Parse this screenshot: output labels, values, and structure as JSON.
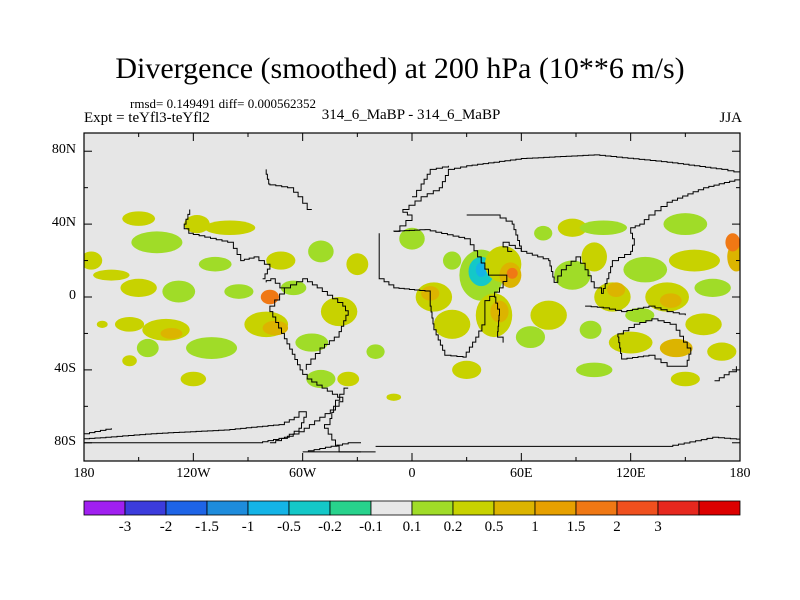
{
  "title": "Divergence (smoothed) at 200 hPa (10**6 m/s)",
  "stats_line": "rmsd= 0.149491 diff= 0.000562352",
  "experiment": "Expt = teYfl3-teYfl2",
  "subtitle": "314_6_MaBP - 314_6_MaBP",
  "season": "JJA",
  "map": {
    "projection": "cylindrical equidistant",
    "lon_range": [
      -180,
      180
    ],
    "lat_range": [
      -90,
      90
    ],
    "background_color": "#e6e6e6",
    "lat_ticks": [
      "80N",
      "40N",
      "0",
      "40S",
      "80S"
    ],
    "lon_ticks": [
      "180",
      "120W",
      "60W",
      "0",
      "60E",
      "120E",
      "180"
    ]
  },
  "colorbar": {
    "colors": [
      "#a020f0",
      "#3c3cdc",
      "#1e64e6",
      "#1e8cdc",
      "#14b4e6",
      "#14c8c8",
      "#28d28c",
      "#e8e8e8",
      "#a0dc28",
      "#c8d200",
      "#dcb400",
      "#e6a000",
      "#f07814",
      "#f0501e",
      "#e6281e",
      "#dc0000"
    ],
    "labels": [
      "-3",
      "-2",
      "-1.5",
      "-1",
      "-0.5",
      "-0.2",
      "-0.1",
      "0.1",
      "0.2",
      "0.5",
      "1",
      "1.5",
      "2",
      "3"
    ]
  },
  "anomaly_blobs": [
    {
      "lon": -176,
      "lat": 20,
      "rx": 6,
      "ry": 5,
      "level": 1
    },
    {
      "lon": -150,
      "lat": 43,
      "rx": 9,
      "ry": 4,
      "level": 1
    },
    {
      "lon": -140,
      "lat": 30,
      "rx": 14,
      "ry": 6,
      "level": 0
    },
    {
      "lon": -118,
      "lat": 40,
      "rx": 7,
      "ry": 5,
      "level": 1
    },
    {
      "lon": -100,
      "lat": 38,
      "rx": 14,
      "ry": 4,
      "level": 1
    },
    {
      "lon": -108,
      "lat": 18,
      "rx": 9,
      "ry": 4,
      "level": 0
    },
    {
      "lon": -165,
      "lat": 12,
      "rx": 10,
      "ry": 3,
      "level": 1
    },
    {
      "lon": -150,
      "lat": 5,
      "rx": 10,
      "ry": 5,
      "level": 1
    },
    {
      "lon": -128,
      "lat": 3,
      "rx": 9,
      "ry": 6,
      "level": 0
    },
    {
      "lon": -95,
      "lat": 3,
      "rx": 8,
      "ry": 4,
      "level": 0
    },
    {
      "lon": -78,
      "lat": 0,
      "rx": 5,
      "ry": 4,
      "level": 3
    },
    {
      "lon": -65,
      "lat": 5,
      "rx": 7,
      "ry": 4,
      "level": 0
    },
    {
      "lon": -72,
      "lat": 20,
      "rx": 8,
      "ry": 5,
      "level": 1
    },
    {
      "lon": -50,
      "lat": 25,
      "rx": 7,
      "ry": 6,
      "level": 0
    },
    {
      "lon": -30,
      "lat": 18,
      "rx": 6,
      "ry": 6,
      "level": 1
    },
    {
      "lon": -40,
      "lat": -8,
      "rx": 10,
      "ry": 8,
      "level": 1
    },
    {
      "lon": -155,
      "lat": -15,
      "rx": 8,
      "ry": 4,
      "level": 1
    },
    {
      "lon": -145,
      "lat": -28,
      "rx": 6,
      "ry": 5,
      "level": 0
    },
    {
      "lon": -135,
      "lat": -18,
      "rx": 13,
      "ry": 6,
      "level": 1
    },
    {
      "lon": -132,
      "lat": -20,
      "rx": 6,
      "ry": 3,
      "level": 2
    },
    {
      "lon": -110,
      "lat": -28,
      "rx": 14,
      "ry": 6,
      "level": 0
    },
    {
      "lon": -120,
      "lat": -45,
      "rx": 7,
      "ry": 4,
      "level": 1
    },
    {
      "lon": -80,
      "lat": -15,
      "rx": 12,
      "ry": 7,
      "level": 1
    },
    {
      "lon": -75,
      "lat": -17,
      "rx": 7,
      "ry": 4,
      "level": 2
    },
    {
      "lon": -55,
      "lat": -25,
      "rx": 9,
      "ry": 5,
      "level": 0
    },
    {
      "lon": -50,
      "lat": -45,
      "rx": 8,
      "ry": 5,
      "level": 0
    },
    {
      "lon": -35,
      "lat": -45,
      "rx": 6,
      "ry": 4,
      "level": 1
    },
    {
      "lon": -155,
      "lat": -35,
      "rx": 4,
      "ry": 3,
      "level": 1
    },
    {
      "lon": -20,
      "lat": -30,
      "rx": 5,
      "ry": 4,
      "level": 0
    },
    {
      "lon": 0,
      "lat": 32,
      "rx": 7,
      "ry": 6,
      "level": 0
    },
    {
      "lon": 12,
      "lat": 0,
      "rx": 10,
      "ry": 8,
      "level": 1
    },
    {
      "lon": 10,
      "lat": 2,
      "rx": 5,
      "ry": 4,
      "level": 2
    },
    {
      "lon": 22,
      "lat": 20,
      "rx": 5,
      "ry": 5,
      "level": 0
    },
    {
      "lon": 38,
      "lat": 12,
      "rx": 12,
      "ry": 14,
      "level": 0
    },
    {
      "lon": 38,
      "lat": 14,
      "rx": 7,
      "ry": 8,
      "level": -1
    },
    {
      "lon": 38,
      "lat": 15,
      "rx": 3,
      "ry": 4,
      "level": -2
    },
    {
      "lon": 50,
      "lat": 18,
      "rx": 10,
      "ry": 10,
      "level": 1
    },
    {
      "lon": 54,
      "lat": 12,
      "rx": 6,
      "ry": 7,
      "level": 2
    },
    {
      "lon": 55,
      "lat": 13,
      "rx": 3,
      "ry": 3,
      "level": 3
    },
    {
      "lon": 22,
      "lat": -15,
      "rx": 10,
      "ry": 8,
      "level": 1
    },
    {
      "lon": 45,
      "lat": -10,
      "rx": 10,
      "ry": 12,
      "level": 1
    },
    {
      "lon": 48,
      "lat": -8,
      "rx": 5,
      "ry": 6,
      "level": 2
    },
    {
      "lon": 30,
      "lat": -40,
      "rx": 8,
      "ry": 5,
      "level": 1
    },
    {
      "lon": 65,
      "lat": -22,
      "rx": 8,
      "ry": 6,
      "level": 0
    },
    {
      "lon": 75,
      "lat": -10,
      "rx": 10,
      "ry": 8,
      "level": 1
    },
    {
      "lon": 88,
      "lat": 12,
      "rx": 10,
      "ry": 8,
      "level": 0
    },
    {
      "lon": 88,
      "lat": 38,
      "rx": 8,
      "ry": 5,
      "level": 1
    },
    {
      "lon": 72,
      "lat": 35,
      "rx": 5,
      "ry": 4,
      "level": 0
    },
    {
      "lon": 105,
      "lat": 38,
      "rx": 13,
      "ry": 4,
      "level": 0
    },
    {
      "lon": 100,
      "lat": 22,
      "rx": 7,
      "ry": 8,
      "level": 1
    },
    {
      "lon": 110,
      "lat": 0,
      "rx": 10,
      "ry": 8,
      "level": 1
    },
    {
      "lon": 112,
      "lat": 4,
      "rx": 5,
      "ry": 4,
      "level": 2
    },
    {
      "lon": 128,
      "lat": 15,
      "rx": 12,
      "ry": 7,
      "level": 0
    },
    {
      "lon": 140,
      "lat": 0,
      "rx": 12,
      "ry": 8,
      "level": 1
    },
    {
      "lon": 142,
      "lat": -2,
      "rx": 6,
      "ry": 4,
      "level": 2
    },
    {
      "lon": 150,
      "lat": 40,
      "rx": 12,
      "ry": 6,
      "level": 0
    },
    {
      "lon": 155,
      "lat": 20,
      "rx": 14,
      "ry": 6,
      "level": 1
    },
    {
      "lon": 165,
      "lat": 5,
      "rx": 10,
      "ry": 5,
      "level": 0
    },
    {
      "lon": 178,
      "lat": 22,
      "rx": 5,
      "ry": 8,
      "level": 2
    },
    {
      "lon": 176,
      "lat": 30,
      "rx": 4,
      "ry": 5,
      "level": 3
    },
    {
      "lon": 120,
      "lat": -25,
      "rx": 12,
      "ry": 6,
      "level": 1
    },
    {
      "lon": 125,
      "lat": -10,
      "rx": 8,
      "ry": 4,
      "level": 0
    },
    {
      "lon": 160,
      "lat": -15,
      "rx": 10,
      "ry": 6,
      "level": 1
    },
    {
      "lon": 145,
      "lat": -28,
      "rx": 9,
      "ry": 5,
      "level": 2
    },
    {
      "lon": 170,
      "lat": -30,
      "rx": 8,
      "ry": 5,
      "level": 1
    },
    {
      "lon": 100,
      "lat": -40,
      "rx": 10,
      "ry": 4,
      "level": 0
    },
    {
      "lon": 150,
      "lat": -45,
      "rx": 8,
      "ry": 4,
      "level": 1
    },
    {
      "lon": -10,
      "lat": -55,
      "rx": 4,
      "ry": 2,
      "level": 1
    },
    {
      "lon": -170,
      "lat": -15,
      "rx": 3,
      "ry": 2,
      "level": 1
    },
    {
      "lon": 98,
      "lat": -18,
      "rx": 6,
      "ry": 5,
      "level": 0
    }
  ],
  "coastlines": [
    [
      [
        -180,
        -80
      ],
      [
        -85,
        -80
      ],
      [
        -70,
        -77
      ],
      [
        -62,
        -72
      ],
      [
        -58,
        -63
      ],
      [
        -62,
        -66
      ],
      [
        -70,
        -70
      ],
      [
        -100,
        -73
      ],
      [
        -140,
        -75
      ],
      [
        -165,
        -77
      ],
      [
        -180,
        -78
      ]
    ],
    [
      [
        -180,
        -75
      ],
      [
        -165,
        -72
      ]
    ],
    [
      [
        -78,
        -80
      ],
      [
        -62,
        -74
      ],
      [
        -42,
        -60
      ],
      [
        -38,
        -55
      ],
      [
        -55,
        -45
      ],
      [
        -60,
        -40
      ],
      [
        -70,
        -20
      ],
      [
        -78,
        -5
      ],
      [
        -70,
        5
      ],
      [
        -60,
        10
      ],
      [
        -52,
        5
      ],
      [
        -38,
        -5
      ],
      [
        -35,
        -10
      ],
      [
        -40,
        -22
      ],
      [
        -48,
        -28
      ],
      [
        -58,
        -40
      ]
    ],
    [
      [
        -35,
        -50
      ],
      [
        -42,
        -60
      ],
      [
        -45,
        -70
      ],
      [
        -48,
        -72
      ],
      [
        -40,
        -85
      ],
      [
        -20,
        -85
      ]
    ],
    [
      [
        -28,
        -85
      ],
      [
        -40,
        -85
      ],
      [
        -60,
        -85
      ],
      [
        -35,
        -80
      ],
      [
        -28,
        -80
      ]
    ],
    [
      [
        -20,
        -82
      ],
      [
        90,
        -82
      ],
      [
        140,
        -82
      ],
      [
        165,
        -77
      ],
      [
        178,
        -78
      ],
      [
        180,
        -78
      ]
    ],
    [
      [
        -18,
        35
      ],
      [
        -18,
        10
      ],
      [
        -10,
        5
      ],
      [
        10,
        3
      ],
      [
        10,
        -5
      ],
      [
        12,
        -18
      ],
      [
        18,
        -32
      ],
      [
        28,
        -33
      ],
      [
        35,
        -22
      ],
      [
        40,
        -12
      ],
      [
        40,
        -2
      ],
      [
        48,
        5
      ],
      [
        52,
        12
      ],
      [
        44,
        12
      ],
      [
        38,
        22
      ],
      [
        32,
        32
      ],
      [
        10,
        37
      ],
      [
        -10,
        36
      ]
    ],
    [
      [
        45,
        0
      ],
      [
        48,
        -10
      ],
      [
        47,
        -22
      ],
      [
        50,
        -25
      ]
    ],
    [
      [
        -10,
        36
      ],
      [
        0,
        45
      ],
      [
        -5,
        48
      ],
      [
        5,
        55
      ],
      [
        15,
        60
      ],
      [
        20,
        70
      ],
      [
        30,
        72
      ],
      [
        60,
        76
      ],
      [
        100,
        78
      ],
      [
        140,
        74
      ],
      [
        170,
        70
      ],
      [
        180,
        68
      ]
    ],
    [
      [
        0,
        55
      ],
      [
        5,
        62
      ],
      [
        10,
        70
      ],
      [
        20,
        72
      ]
    ],
    [
      [
        30,
        45
      ],
      [
        45,
        45
      ],
      [
        55,
        40
      ],
      [
        60,
        25
      ],
      [
        75,
        20
      ],
      [
        78,
        8
      ],
      [
        82,
        15
      ],
      [
        90,
        22
      ],
      [
        95,
        15
      ],
      [
        100,
        5
      ],
      [
        104,
        2
      ],
      [
        107,
        10
      ],
      [
        110,
        20
      ],
      [
        120,
        25
      ],
      [
        122,
        32
      ],
      [
        120,
        38
      ],
      [
        125,
        40
      ],
      [
        130,
        45
      ],
      [
        140,
        52
      ],
      [
        160,
        60
      ],
      [
        180,
        65
      ]
    ],
    [
      [
        55,
        25
      ],
      [
        50,
        30
      ],
      [
        60,
        25
      ]
    ],
    [
      [
        95,
        -5
      ],
      [
        105,
        -6
      ],
      [
        115,
        -8
      ],
      [
        130,
        -5
      ],
      [
        140,
        -8
      ],
      [
        150,
        -10
      ]
    ],
    [
      [
        113,
        -22
      ],
      [
        115,
        -34
      ],
      [
        130,
        -32
      ],
      [
        140,
        -38
      ],
      [
        150,
        -38
      ],
      [
        153,
        -28
      ],
      [
        145,
        -15
      ],
      [
        135,
        -12
      ],
      [
        125,
        -15
      ],
      [
        113,
        -22
      ]
    ],
    [
      [
        166,
        -46
      ],
      [
        174,
        -41
      ],
      [
        178,
        -38
      ]
    ],
    [
      [
        -180,
        -78
      ],
      [
        -180,
        90
      ]
    ],
    [
      [
        -92,
        20
      ],
      [
        -98,
        30
      ],
      [
        -120,
        35
      ],
      [
        -125,
        40
      ],
      [
        -122,
        48
      ]
    ],
    [
      [
        -82,
        10
      ],
      [
        -78,
        18
      ],
      [
        -84,
        22
      ],
      [
        -92,
        20
      ]
    ],
    [
      [
        -70,
        5
      ],
      [
        -75,
        10
      ],
      [
        -80,
        8
      ]
    ],
    [
      [
        -55,
        48
      ],
      [
        -60,
        55
      ],
      [
        -65,
        60
      ],
      [
        -78,
        62
      ],
      [
        -80,
        70
      ]
    ]
  ]
}
